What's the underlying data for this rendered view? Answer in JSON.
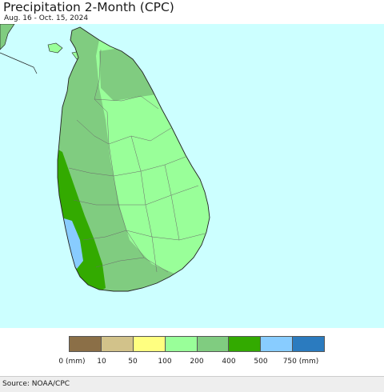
{
  "header": {
    "title": "Precipitation 2-Month (CPC)",
    "subtitle": "Aug. 16 - Oct. 15, 2024"
  },
  "map": {
    "region": "Sri Lanka",
    "ocean_color": "#ccffff",
    "land_colors": {
      "100-200": "#99ff99",
      "200-400": "#80cc80",
      "400-500": "#33aa00",
      "500-750": "#88ccff"
    }
  },
  "legend": {
    "colors": [
      "#8b6f47",
      "#d2c28a",
      "#ffff80",
      "#99ff99",
      "#80cc80",
      "#33aa00",
      "#88ccff",
      "#2b7bbf"
    ],
    "labels": [
      "0 (mm)",
      "10",
      "50",
      "100",
      "200",
      "400",
      "500",
      "750 (mm)"
    ]
  },
  "footer": {
    "source": "Source: NOAA/CPC"
  }
}
